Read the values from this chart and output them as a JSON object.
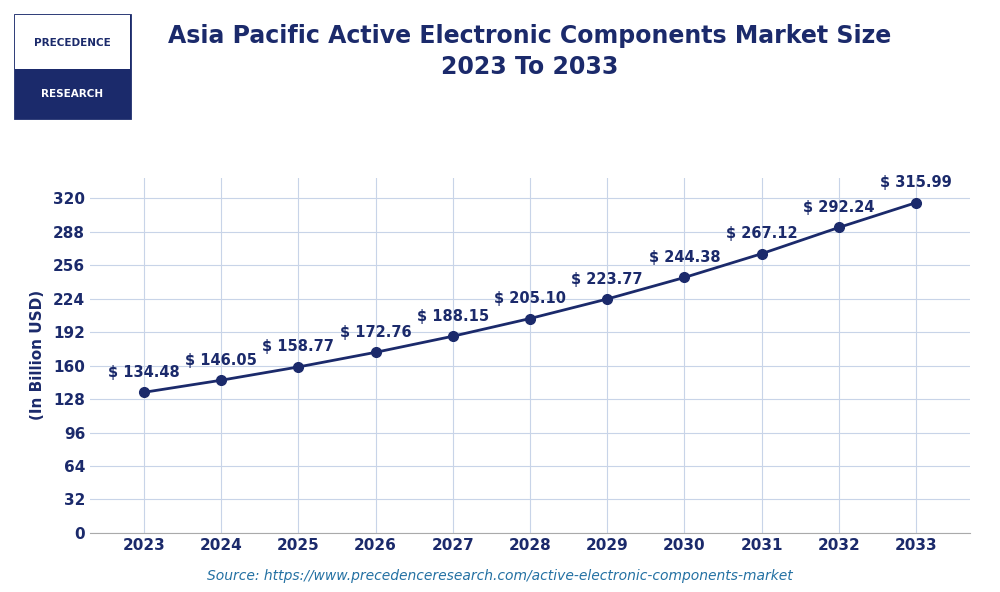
{
  "title": "Asia Pacific Active Electronic Components Market Size\n2023 To 2033",
  "ylabel": "(In Billion USD)",
  "source_text": "Source: https://www.precedenceresearch.com/active-electronic-components-market",
  "years": [
    2023,
    2024,
    2025,
    2026,
    2027,
    2028,
    2029,
    2030,
    2031,
    2032,
    2033
  ],
  "values": [
    134.48,
    146.05,
    158.77,
    172.76,
    188.15,
    205.1,
    223.77,
    244.38,
    267.12,
    292.24,
    315.99
  ],
  "labels": [
    "$ 134.48",
    "$ 146.05",
    "$ 158.77",
    "$ 172.76",
    "$ 188.15",
    "$ 205.10",
    "$ 223.77",
    "$ 244.38",
    "$ 267.12",
    "$ 292.24",
    "$ 315.99"
  ],
  "line_color": "#1b2a6b",
  "marker_color": "#1b2a6b",
  "label_color": "#1b2a6b",
  "title_color": "#1b2a6b",
  "ylabel_color": "#1b2a6b",
  "source_color": "#2471a3",
  "background_color": "#ffffff",
  "grid_color": "#c8d4e8",
  "yticks": [
    0,
    32,
    64,
    96,
    128,
    160,
    192,
    224,
    256,
    288,
    320
  ],
  "ylim": [
    0,
    340
  ],
  "xlim": [
    2022.3,
    2033.7
  ],
  "title_fontsize": 17,
  "ylabel_fontsize": 11,
  "tick_fontsize": 11,
  "label_fontsize": 10.5,
  "source_fontsize": 10,
  "line_width": 2.0,
  "marker_size": 7,
  "logo_text_top": "PRECEDENCE",
  "logo_text_bottom": "RESEARCH",
  "logo_top_bg": "#ffffff",
  "logo_bottom_bg": "#1b2a6b",
  "logo_border": "#1b2a6b"
}
